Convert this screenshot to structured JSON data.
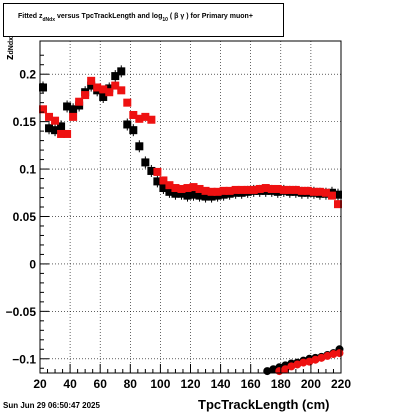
{
  "title": {
    "prefix": "Fitted  z",
    "sub": "dNdx",
    "middle": "  versus TpcTrackLength and log",
    "log_sub": "10",
    "suffix": "(  β γ ) for Primary muon+"
  },
  "footer": {
    "date": "Sun Jun 29 06:50:47 2025"
  },
  "colors": {
    "black_series": "#000000",
    "red_series": "#ee1111",
    "grid": "#000000"
  },
  "chart_data": {
    "type": "scatter",
    "xlabel": "TpcTrackLength (cm)",
    "ylabel_main": "z",
    "ylabel_sub": "dNdx",
    "xlim": [
      20,
      220
    ],
    "ylim": [
      -0.115,
      0.235
    ],
    "grid": true,
    "x_ticks": [
      20,
      40,
      60,
      80,
      100,
      120,
      140,
      160,
      180,
      200,
      220
    ],
    "y_ticks": [
      -0.1,
      -0.05,
      0,
      0.05,
      0.1,
      0.15,
      0.2
    ],
    "y_tick_labels": [
      "−0.1",
      "−0.05",
      "0",
      "0.05",
      "0.1",
      "0.15",
      "0.2"
    ],
    "series": [
      {
        "color": "black",
        "marker": "square",
        "x": [
          22,
          26,
          30,
          34,
          38,
          42,
          46,
          50,
          54,
          58,
          62,
          66,
          70,
          74,
          78,
          82,
          86,
          90,
          94,
          98,
          102,
          106,
          110,
          114,
          118,
          122,
          126,
          130,
          134,
          138,
          142,
          146,
          150,
          154,
          158,
          162,
          166,
          170,
          174,
          178,
          182,
          186,
          190,
          194,
          198,
          202,
          206,
          210,
          214,
          218
        ],
        "y": [
          0.186,
          0.143,
          0.141,
          0.145,
          0.166,
          0.163,
          0.167,
          0.181,
          0.188,
          0.183,
          0.176,
          0.185,
          0.198,
          0.203,
          0.147,
          0.141,
          0.124,
          0.107,
          0.098,
          0.087,
          0.08,
          0.076,
          0.074,
          0.074,
          0.072,
          0.073,
          0.072,
          0.071,
          0.071,
          0.072,
          0.073,
          0.074,
          0.075,
          0.075,
          0.076,
          0.077,
          0.077,
          0.077,
          0.077,
          0.076,
          0.077,
          0.076,
          0.076,
          0.075,
          0.075,
          0.075,
          0.074,
          0.074,
          0.075,
          0.073
        ]
      },
      {
        "color": "red",
        "marker": "square",
        "x": [
          22,
          26,
          30,
          34,
          38,
          42,
          46,
          50,
          54,
          58,
          62,
          66,
          70,
          74,
          78,
          82,
          86,
          90,
          94,
          98,
          102,
          106,
          110,
          114,
          118,
          122,
          126,
          130,
          134,
          138,
          142,
          146,
          150,
          154,
          158,
          162,
          166,
          170,
          174,
          178,
          182,
          186,
          190,
          194,
          198,
          202,
          206,
          210,
          214,
          218
        ],
        "y": [
          0.163,
          0.155,
          0.151,
          0.137,
          0.137,
          0.155,
          0.171,
          0.178,
          0.193,
          0.186,
          0.184,
          0.181,
          0.188,
          0.183,
          0.17,
          0.157,
          0.153,
          0.155,
          0.152,
          0.097,
          0.088,
          0.083,
          0.08,
          0.079,
          0.08,
          0.081,
          0.079,
          0.077,
          0.076,
          0.076,
          0.077,
          0.077,
          0.078,
          0.078,
          0.078,
          0.078,
          0.079,
          0.08,
          0.079,
          0.079,
          0.078,
          0.078,
          0.078,
          0.077,
          0.077,
          0.076,
          0.076,
          0.075,
          0.072,
          0.063
        ]
      },
      {
        "color": "black",
        "marker": "circle",
        "x": [
          171,
          175,
          179,
          183,
          187,
          191,
          195,
          199,
          203,
          207,
          211,
          215,
          219
        ],
        "y": [
          -0.113,
          -0.111,
          -0.109,
          -0.107,
          -0.105,
          -0.104,
          -0.102,
          -0.1,
          -0.099,
          -0.098,
          -0.096,
          -0.094,
          -0.09
        ]
      },
      {
        "color": "red",
        "marker": "circle",
        "x": [
          179,
          183,
          187,
          191,
          195,
          199,
          203,
          207,
          211,
          215,
          219
        ],
        "y": [
          -0.113,
          -0.111,
          -0.108,
          -0.106,
          -0.104,
          -0.103,
          -0.101,
          -0.099,
          -0.097,
          -0.095,
          -0.094
        ]
      }
    ]
  }
}
